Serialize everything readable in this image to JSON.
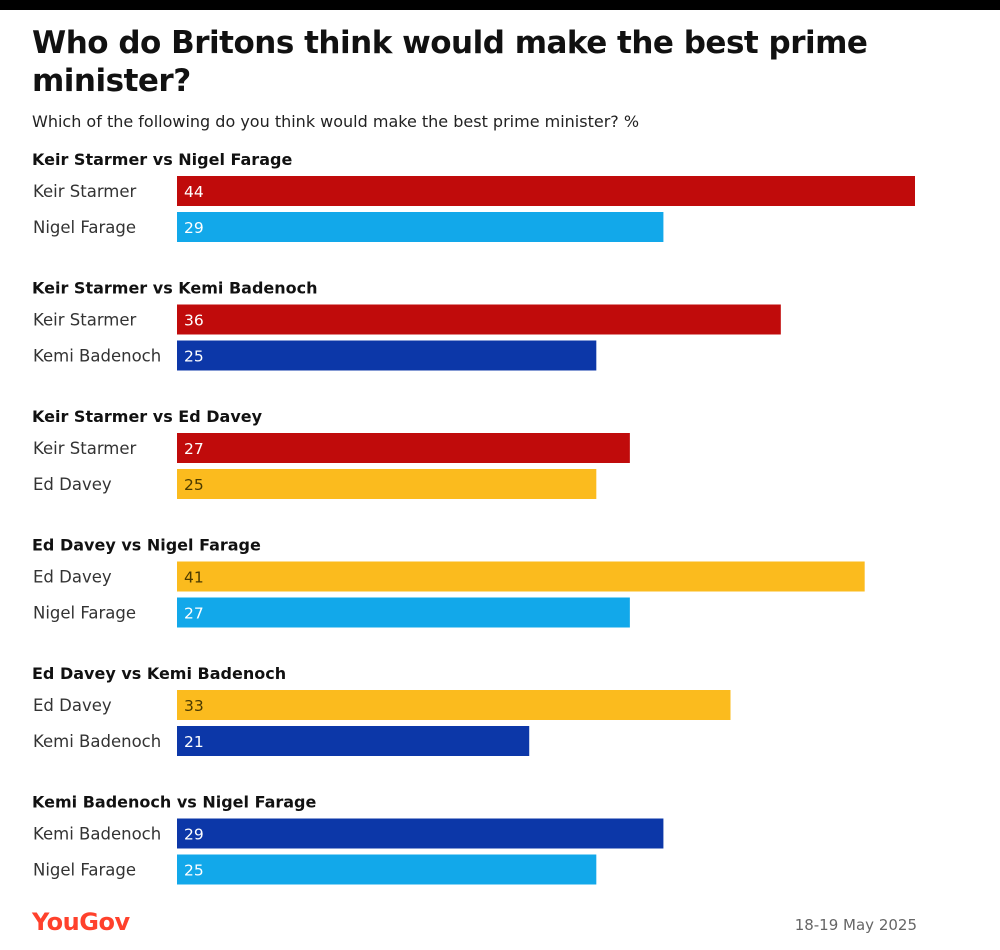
{
  "chart_data": {
    "type": "bar",
    "orientation": "horizontal",
    "title": "Who do Britons think would make the best prime minister?",
    "subtitle": "Which of the following do you think would make the best prime minister? %",
    "xlim": [
      0,
      44
    ],
    "grid": false,
    "legend": "none",
    "colors": {
      "Keir Starmer": "#c00b0b",
      "Nigel Farage": "#12a8ea",
      "Kemi Badenoch": "#0c37a8",
      "Ed Davey": "#fbbb1e"
    },
    "groups": [
      {
        "title": "Keir Starmer vs Nigel Farage",
        "bars": [
          {
            "label": "Keir Starmer",
            "value": 44
          },
          {
            "label": "Nigel Farage",
            "value": 29
          }
        ]
      },
      {
        "title": "Keir Starmer vs Kemi Badenoch",
        "bars": [
          {
            "label": "Keir Starmer",
            "value": 36
          },
          {
            "label": "Kemi Badenoch",
            "value": 25
          }
        ]
      },
      {
        "title": "Keir Starmer vs Ed Davey",
        "bars": [
          {
            "label": "Keir Starmer",
            "value": 27
          },
          {
            "label": "Ed Davey",
            "value": 25
          }
        ]
      },
      {
        "title": "Ed Davey vs Nigel Farage",
        "bars": [
          {
            "label": "Ed Davey",
            "value": 41
          },
          {
            "label": "Nigel Farage",
            "value": 27
          }
        ]
      },
      {
        "title": "Ed Davey vs Kemi Badenoch",
        "bars": [
          {
            "label": "Ed Davey",
            "value": 33
          },
          {
            "label": "Kemi Badenoch",
            "value": 21
          }
        ]
      },
      {
        "title": "Kemi Badenoch vs Nigel Farage",
        "bars": [
          {
            "label": "Kemi Badenoch",
            "value": 29
          },
          {
            "label": "Nigel Farage",
            "value": 25
          }
        ]
      }
    ]
  },
  "footer": {
    "brand": "YouGov",
    "brand_color": "#ff412c",
    "date": "18-19 May 2025"
  }
}
